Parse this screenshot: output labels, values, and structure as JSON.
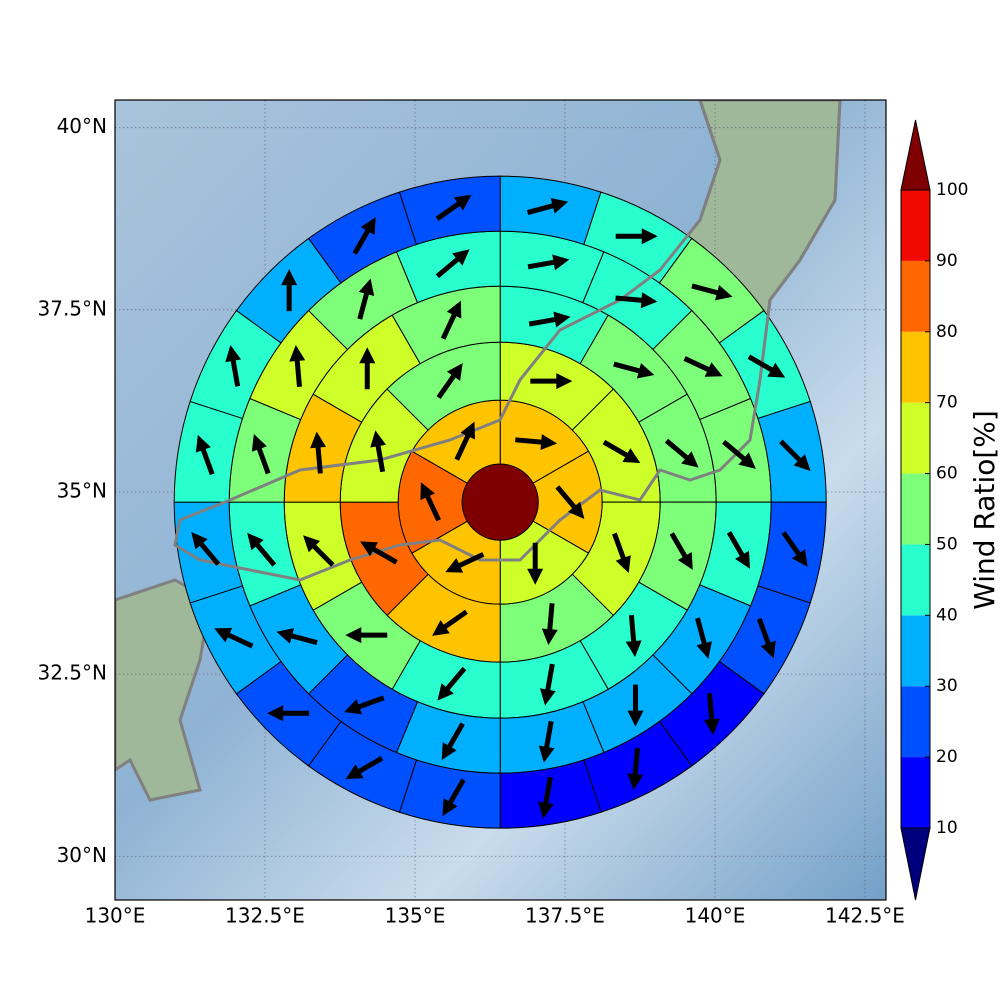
{
  "chart_data": {
    "type": "polar-sector-map",
    "xlim": [
      130,
      142.85
    ],
    "ylim": [
      29.4,
      40.38
    ],
    "xticks": [
      {
        "value": 130,
        "label": "130°E"
      },
      {
        "value": 132.5,
        "label": "132.5°E"
      },
      {
        "value": 135,
        "label": "135°E"
      },
      {
        "value": 137.5,
        "label": "137.5°E"
      },
      {
        "value": 140,
        "label": "140°E"
      },
      {
        "value": 142.5,
        "label": "142.5°E"
      }
    ],
    "yticks": [
      {
        "value": 30,
        "label": "30°N"
      },
      {
        "value": 32.5,
        "label": "32.5°N"
      },
      {
        "value": 35,
        "label": "35°N"
      },
      {
        "value": 37.5,
        "label": "37.5°N"
      },
      {
        "value": 40,
        "label": "40°N"
      }
    ],
    "grid": true,
    "center": [
      136.42,
      34.86
    ],
    "center_value": 105,
    "rings": [
      {
        "values": [
          75,
          75,
          65,
          75,
          85,
          75
        ],
        "directions": [
          95,
          140,
          180,
          245,
          335,
          25
        ]
      },
      {
        "values": [
          65,
          65,
          65,
          55,
          75,
          85,
          65,
          55
        ],
        "directions": [
          90,
          120,
          160,
          185,
          235,
          300,
          350,
          35
        ]
      },
      {
        "values": [
          45,
          55,
          55,
          55,
          45,
          45,
          45,
          55,
          65,
          75,
          65,
          55
        ],
        "directions": [
          80,
          105,
          130,
          150,
          175,
          190,
          220,
          270,
          315,
          355,
          0,
          25
        ]
      },
      {
        "values": [
          45,
          45,
          55,
          55,
          45,
          35,
          35,
          35,
          35,
          25,
          35,
          45,
          55,
          65,
          55,
          45
        ],
        "directions": [
          80,
          95,
          115,
          130,
          150,
          165,
          180,
          190,
          210,
          250,
          285,
          320,
          340,
          355,
          15,
          50
        ]
      },
      {
        "values": [
          35,
          45,
          55,
          45,
          35,
          25,
          25,
          15,
          15,
          15,
          25,
          25,
          25,
          35,
          35,
          45,
          45,
          35,
          25,
          25
        ],
        "directions": [
          75,
          90,
          105,
          120,
          135,
          145,
          160,
          175,
          185,
          190,
          210,
          240,
          270,
          295,
          320,
          340,
          350,
          0,
          30,
          55
        ]
      }
    ],
    "colorbar": {
      "label": "Wind Ratio[%]",
      "ticks": [
        10,
        20,
        30,
        40,
        50,
        60,
        70,
        80,
        90,
        100
      ],
      "colors": [
        "#0000ff",
        "#0050ff",
        "#00b0ff",
        "#29ffce",
        "#7dff7a",
        "#ceff29",
        "#ffc400",
        "#ff6800",
        "#f10800"
      ],
      "under": "#00007f",
      "over": "#7f0000"
    }
  }
}
